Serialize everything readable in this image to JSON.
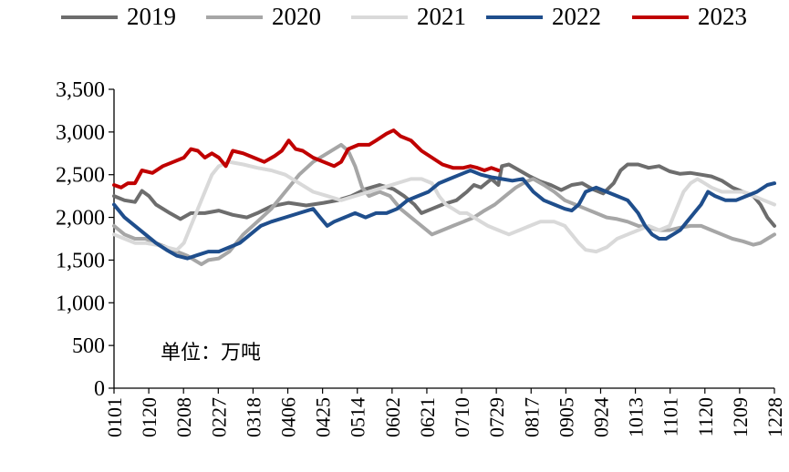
{
  "chart_data": {
    "type": "line",
    "unit_label": "单位：万吨",
    "ylim": [
      0,
      3500
    ],
    "yticks": [
      0,
      500,
      1000,
      1500,
      2000,
      2500,
      3000,
      3500
    ],
    "ytick_labels": [
      "0",
      "500",
      "1,000",
      "1,500",
      "2,000",
      "2,500",
      "3,000",
      "3,500"
    ],
    "xtick_labels": [
      "0101",
      "0120",
      "0208",
      "0227",
      "0318",
      "0406",
      "0425",
      "0514",
      "0602",
      "0621",
      "0710",
      "0729",
      "0817",
      "0905",
      "0924",
      "1013",
      "1101",
      "1120",
      "1209",
      "1228"
    ],
    "legend_position": "top",
    "series": [
      {
        "name": "2019",
        "color": "#6d6d6d",
        "points": [
          [
            0,
            2250
          ],
          [
            3,
            2200
          ],
          [
            6,
            2180
          ],
          [
            8,
            2310
          ],
          [
            10,
            2250
          ],
          [
            12,
            2150
          ],
          [
            16,
            2050
          ],
          [
            19,
            1980
          ],
          [
            22,
            2050
          ],
          [
            26,
            2050
          ],
          [
            30,
            2080
          ],
          [
            34,
            2030
          ],
          [
            38,
            2000
          ],
          [
            41,
            2050
          ],
          [
            45,
            2130
          ],
          [
            50,
            2170
          ],
          [
            55,
            2140
          ],
          [
            60,
            2170
          ],
          [
            64,
            2200
          ],
          [
            68,
            2250
          ],
          [
            72,
            2330
          ],
          [
            76,
            2380
          ],
          [
            80,
            2330
          ],
          [
            83,
            2250
          ],
          [
            86,
            2150
          ],
          [
            88,
            2050
          ],
          [
            91,
            2100
          ],
          [
            94,
            2150
          ],
          [
            98,
            2200
          ],
          [
            101,
            2300
          ],
          [
            103,
            2380
          ],
          [
            105,
            2350
          ],
          [
            108,
            2450
          ],
          [
            110,
            2380
          ],
          [
            111,
            2600
          ],
          [
            113,
            2620
          ],
          [
            116,
            2550
          ],
          [
            119,
            2480
          ],
          [
            122,
            2420
          ],
          [
            125,
            2380
          ],
          [
            128,
            2320
          ],
          [
            131,
            2380
          ],
          [
            134,
            2400
          ],
          [
            137,
            2330
          ],
          [
            140,
            2280
          ],
          [
            143,
            2400
          ],
          [
            145,
            2550
          ],
          [
            147,
            2620
          ],
          [
            150,
            2620
          ],
          [
            153,
            2580
          ],
          [
            156,
            2600
          ],
          [
            159,
            2540
          ],
          [
            162,
            2510
          ],
          [
            165,
            2520
          ],
          [
            168,
            2500
          ],
          [
            171,
            2480
          ],
          [
            174,
            2430
          ],
          [
            177,
            2350
          ],
          [
            180,
            2300
          ],
          [
            183,
            2250
          ],
          [
            185,
            2150
          ],
          [
            187,
            2000
          ],
          [
            189,
            1900
          ]
        ]
      },
      {
        "name": "2020",
        "color": "#a6a6a6",
        "points": [
          [
            0,
            1900
          ],
          [
            3,
            1800
          ],
          [
            6,
            1750
          ],
          [
            9,
            1750
          ],
          [
            12,
            1700
          ],
          [
            15,
            1650
          ],
          [
            18,
            1600
          ],
          [
            21,
            1550
          ],
          [
            23,
            1500
          ],
          [
            25,
            1450
          ],
          [
            27,
            1500
          ],
          [
            30,
            1520
          ],
          [
            33,
            1600
          ],
          [
            37,
            1800
          ],
          [
            41,
            1950
          ],
          [
            45,
            2100
          ],
          [
            49,
            2300
          ],
          [
            53,
            2500
          ],
          [
            57,
            2650
          ],
          [
            61,
            2750
          ],
          [
            65,
            2850
          ],
          [
            67,
            2780
          ],
          [
            69,
            2600
          ],
          [
            71,
            2350
          ],
          [
            73,
            2250
          ],
          [
            76,
            2300
          ],
          [
            79,
            2250
          ],
          [
            82,
            2100
          ],
          [
            85,
            2000
          ],
          [
            88,
            1900
          ],
          [
            91,
            1800
          ],
          [
            94,
            1850
          ],
          [
            97,
            1900
          ],
          [
            100,
            1950
          ],
          [
            103,
            2000
          ],
          [
            106,
            2080
          ],
          [
            109,
            2150
          ],
          [
            112,
            2250
          ],
          [
            115,
            2350
          ],
          [
            118,
            2420
          ],
          [
            120,
            2450
          ],
          [
            123,
            2380
          ],
          [
            126,
            2300
          ],
          [
            129,
            2200
          ],
          [
            132,
            2150
          ],
          [
            135,
            2100
          ],
          [
            138,
            2050
          ],
          [
            141,
            2000
          ],
          [
            144,
            1980
          ],
          [
            147,
            1950
          ],
          [
            150,
            1900
          ],
          [
            153,
            1880
          ],
          [
            156,
            1850
          ],
          [
            159,
            1850
          ],
          [
            162,
            1880
          ],
          [
            165,
            1900
          ],
          [
            168,
            1900
          ],
          [
            171,
            1850
          ],
          [
            174,
            1800
          ],
          [
            177,
            1750
          ],
          [
            180,
            1720
          ],
          [
            183,
            1680
          ],
          [
            185,
            1700
          ],
          [
            187,
            1750
          ],
          [
            189,
            1800
          ]
        ]
      },
      {
        "name": "2021",
        "color": "#d9d9d9",
        "points": [
          [
            0,
            1800
          ],
          [
            3,
            1750
          ],
          [
            6,
            1700
          ],
          [
            9,
            1700
          ],
          [
            12,
            1680
          ],
          [
            15,
            1650
          ],
          [
            18,
            1620
          ],
          [
            20,
            1700
          ],
          [
            22,
            1900
          ],
          [
            24,
            2100
          ],
          [
            26,
            2300
          ],
          [
            28,
            2500
          ],
          [
            30,
            2600
          ],
          [
            33,
            2650
          ],
          [
            37,
            2620
          ],
          [
            41,
            2580
          ],
          [
            45,
            2550
          ],
          [
            49,
            2500
          ],
          [
            53,
            2400
          ],
          [
            57,
            2300
          ],
          [
            61,
            2250
          ],
          [
            65,
            2200
          ],
          [
            69,
            2250
          ],
          [
            73,
            2300
          ],
          [
            77,
            2350
          ],
          [
            81,
            2400
          ],
          [
            85,
            2450
          ],
          [
            88,
            2450
          ],
          [
            91,
            2400
          ],
          [
            93,
            2250
          ],
          [
            95,
            2150
          ],
          [
            97,
            2100
          ],
          [
            99,
            2050
          ],
          [
            101,
            2050
          ],
          [
            103,
            2000
          ],
          [
            105,
            1950
          ],
          [
            107,
            1900
          ],
          [
            110,
            1850
          ],
          [
            113,
            1800
          ],
          [
            116,
            1850
          ],
          [
            119,
            1900
          ],
          [
            122,
            1950
          ],
          [
            126,
            1950
          ],
          [
            129,
            1900
          ],
          [
            131,
            1800
          ],
          [
            133,
            1700
          ],
          [
            135,
            1620
          ],
          [
            138,
            1600
          ],
          [
            141,
            1650
          ],
          [
            144,
            1750
          ],
          [
            147,
            1800
          ],
          [
            150,
            1850
          ],
          [
            153,
            1900
          ],
          [
            156,
            1850
          ],
          [
            159,
            1900
          ],
          [
            161,
            2100
          ],
          [
            163,
            2300
          ],
          [
            165,
            2400
          ],
          [
            167,
            2450
          ],
          [
            169,
            2400
          ],
          [
            171,
            2350
          ],
          [
            174,
            2300
          ],
          [
            177,
            2300
          ],
          [
            180,
            2300
          ],
          [
            183,
            2250
          ],
          [
            186,
            2200
          ],
          [
            189,
            2150
          ]
        ]
      },
      {
        "name": "2022",
        "color": "#1f4e8c",
        "points": [
          [
            0,
            2150
          ],
          [
            3,
            2000
          ],
          [
            6,
            1900
          ],
          [
            9,
            1800
          ],
          [
            12,
            1700
          ],
          [
            15,
            1620
          ],
          [
            18,
            1550
          ],
          [
            21,
            1520
          ],
          [
            24,
            1560
          ],
          [
            27,
            1600
          ],
          [
            30,
            1600
          ],
          [
            33,
            1650
          ],
          [
            36,
            1700
          ],
          [
            39,
            1800
          ],
          [
            42,
            1900
          ],
          [
            45,
            1950
          ],
          [
            49,
            2000
          ],
          [
            53,
            2050
          ],
          [
            57,
            2100
          ],
          [
            59,
            2000
          ],
          [
            61,
            1900
          ],
          [
            63,
            1950
          ],
          [
            66,
            2000
          ],
          [
            69,
            2050
          ],
          [
            72,
            2000
          ],
          [
            75,
            2050
          ],
          [
            78,
            2050
          ],
          [
            81,
            2100
          ],
          [
            84,
            2200
          ],
          [
            87,
            2250
          ],
          [
            90,
            2300
          ],
          [
            93,
            2400
          ],
          [
            96,
            2450
          ],
          [
            99,
            2500
          ],
          [
            102,
            2550
          ],
          [
            105,
            2500
          ],
          [
            108,
            2470
          ],
          [
            111,
            2450
          ],
          [
            114,
            2430
          ],
          [
            117,
            2450
          ],
          [
            120,
            2300
          ],
          [
            123,
            2200
          ],
          [
            126,
            2150
          ],
          [
            129,
            2100
          ],
          [
            131,
            2080
          ],
          [
            133,
            2150
          ],
          [
            135,
            2300
          ],
          [
            138,
            2350
          ],
          [
            141,
            2300
          ],
          [
            144,
            2250
          ],
          [
            147,
            2200
          ],
          [
            150,
            2050
          ],
          [
            152,
            1900
          ],
          [
            154,
            1800
          ],
          [
            156,
            1750
          ],
          [
            158,
            1750
          ],
          [
            160,
            1800
          ],
          [
            162,
            1850
          ],
          [
            164,
            1950
          ],
          [
            166,
            2050
          ],
          [
            168,
            2150
          ],
          [
            170,
            2300
          ],
          [
            172,
            2250
          ],
          [
            175,
            2200
          ],
          [
            178,
            2200
          ],
          [
            181,
            2250
          ],
          [
            184,
            2300
          ],
          [
            187,
            2380
          ],
          [
            189,
            2400
          ]
        ]
      },
      {
        "name": "2023",
        "color": "#c00000",
        "points": [
          [
            0,
            2380
          ],
          [
            2,
            2350
          ],
          [
            4,
            2400
          ],
          [
            6,
            2400
          ],
          [
            8,
            2550
          ],
          [
            11,
            2520
          ],
          [
            14,
            2600
          ],
          [
            17,
            2650
          ],
          [
            20,
            2700
          ],
          [
            22,
            2800
          ],
          [
            24,
            2780
          ],
          [
            26,
            2700
          ],
          [
            28,
            2750
          ],
          [
            30,
            2700
          ],
          [
            32,
            2600
          ],
          [
            34,
            2780
          ],
          [
            37,
            2750
          ],
          [
            40,
            2700
          ],
          [
            43,
            2650
          ],
          [
            46,
            2720
          ],
          [
            48,
            2780
          ],
          [
            50,
            2900
          ],
          [
            52,
            2800
          ],
          [
            54,
            2780
          ],
          [
            57,
            2700
          ],
          [
            60,
            2650
          ],
          [
            63,
            2600
          ],
          [
            65,
            2650
          ],
          [
            67,
            2800
          ],
          [
            70,
            2850
          ],
          [
            73,
            2850
          ],
          [
            75,
            2900
          ],
          [
            78,
            2980
          ],
          [
            80,
            3020
          ],
          [
            82,
            2950
          ],
          [
            85,
            2900
          ],
          [
            88,
            2780
          ],
          [
            91,
            2700
          ],
          [
            94,
            2620
          ],
          [
            97,
            2580
          ],
          [
            100,
            2580
          ],
          [
            102,
            2600
          ],
          [
            104,
            2580
          ],
          [
            106,
            2550
          ],
          [
            108,
            2580
          ],
          [
            110,
            2550
          ]
        ]
      }
    ]
  }
}
